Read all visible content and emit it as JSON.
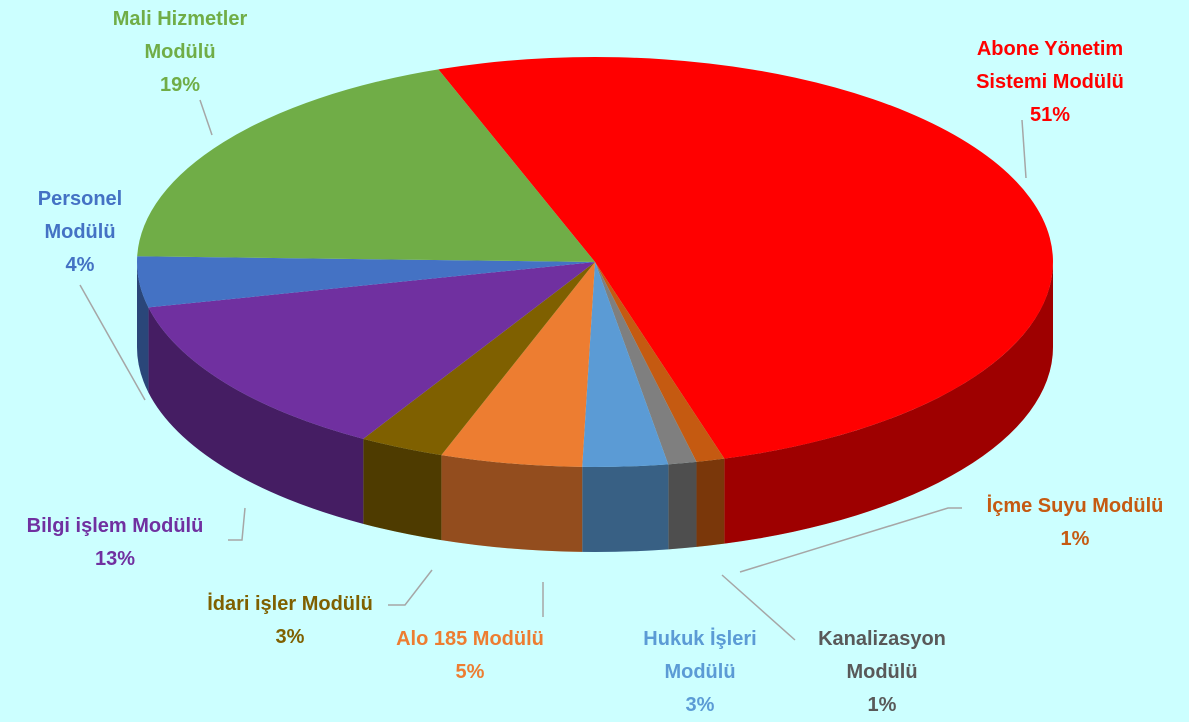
{
  "chart_data": {
    "type": "pie",
    "categories": [
      "Abone Yönetim Sistemi Modülü",
      "İçme Suyu Modülü",
      "Kanalizasyon Modülü",
      "Hukuk İşleri Modülü",
      "Alo 185 Modülü",
      "İdari işler Modülü",
      "Bilgi işlem Modülü",
      "Personel Modülü",
      "Mali Hizmetler Modülü"
    ],
    "values": [
      51,
      1,
      1,
      3,
      5,
      3,
      13,
      4,
      19
    ],
    "value_labels": [
      "51%",
      "1%",
      "1%",
      "3%",
      "5%",
      "3%",
      "13%",
      "4%",
      "19%"
    ],
    "colors": [
      "#ff0000",
      "#c55a11",
      "#7f7f7f",
      "#5b9bd5",
      "#ed7d31",
      "#7f6000",
      "#7030a0",
      "#4472c4",
      "#70ad47"
    ]
  }
}
